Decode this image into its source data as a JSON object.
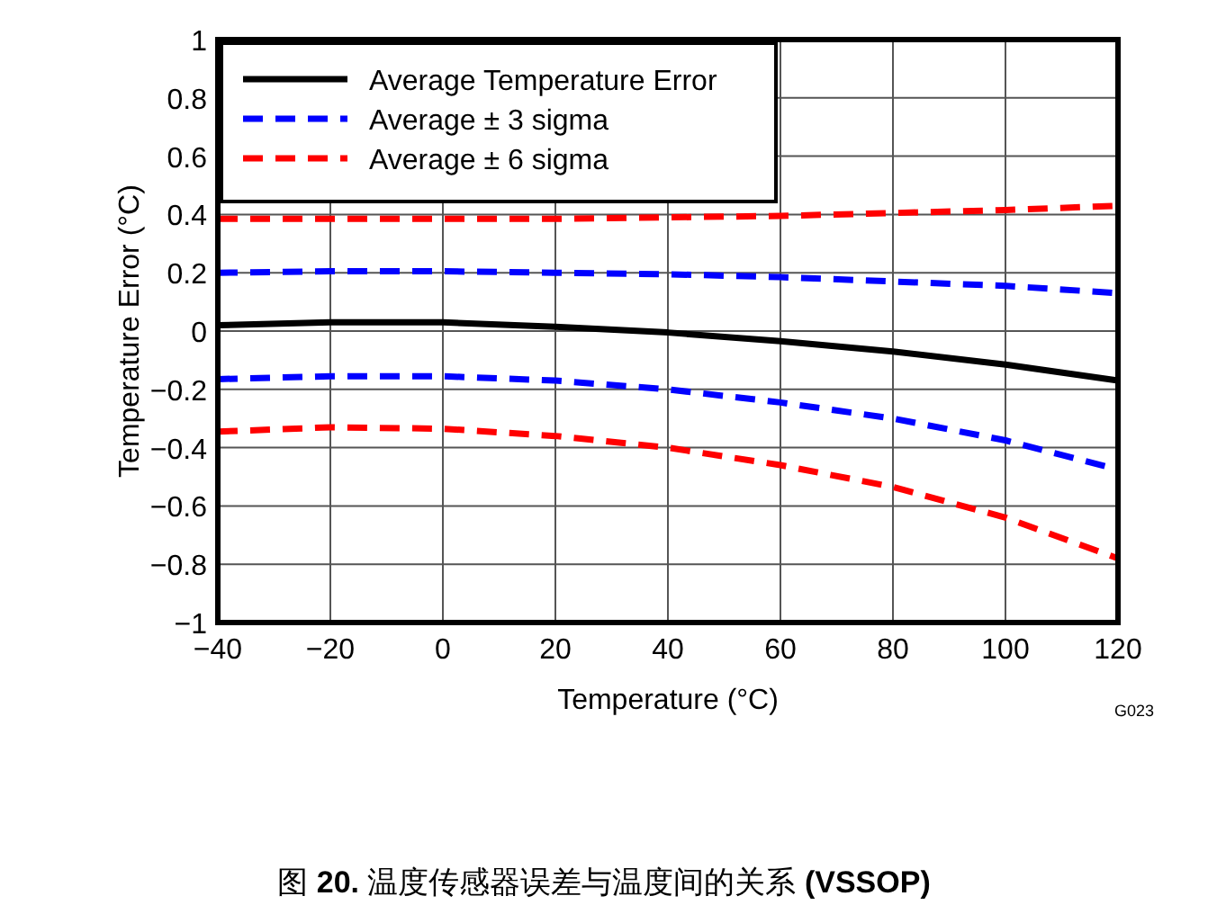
{
  "chart_data": {
    "type": "line",
    "xlabel": "Temperature (°C)",
    "ylabel": "Temperature Error (°C)",
    "x": [
      -40,
      -20,
      0,
      20,
      40,
      60,
      80,
      100,
      120
    ],
    "series": [
      {
        "name": "Average Temperature Error",
        "color": "#000000",
        "line_style": "solid",
        "values": [
          0.02,
          0.03,
          0.03,
          0.015,
          -0.005,
          -0.035,
          -0.07,
          -0.115,
          -0.17
        ]
      },
      {
        "name": "Average ± 3 sigma",
        "color": "#0000ff",
        "line_style": "dashed",
        "values": [
          0.2,
          0.205,
          0.205,
          0.2,
          0.195,
          0.185,
          0.17,
          0.155,
          0.13
        ]
      },
      {
        "name": "Average ± 6 sigma",
        "color": "#ff0000",
        "line_style": "dashed",
        "values": [
          0.385,
          0.385,
          0.385,
          0.385,
          0.39,
          0.395,
          0.405,
          0.415,
          0.43
        ]
      },
      {
        "color": "#0000ff",
        "line_style": "dashed",
        "values": [
          -0.165,
          -0.155,
          -0.155,
          -0.17,
          -0.2,
          -0.245,
          -0.3,
          -0.375,
          -0.475
        ]
      },
      {
        "color": "#ff0000",
        "line_style": "dashed",
        "values": [
          -0.345,
          -0.33,
          -0.335,
          -0.36,
          -0.4,
          -0.46,
          -0.535,
          -0.64,
          -0.78
        ]
      }
    ],
    "xlim": [
      -40,
      120
    ],
    "ylim": [
      -1,
      1
    ],
    "xticks": [
      {
        "value": -40,
        "label": "−40"
      },
      {
        "value": -20,
        "label": "−20"
      },
      0,
      20,
      40,
      60,
      80,
      100,
      120
    ],
    "yticks": [
      {
        "value": -1,
        "label": "−1"
      },
      {
        "value": -0.8,
        "label": "−0.8"
      },
      {
        "value": -0.6,
        "label": "−0.6"
      },
      {
        "value": -0.4,
        "label": "−0.4"
      },
      {
        "value": -0.2,
        "label": "−0.2"
      },
      0,
      0.2,
      0.4,
      0.6,
      0.8,
      1
    ],
    "grid": true,
    "legend": "top left",
    "annotations": [
      "G023",
      "图 **20.** 温度传感器误差与温度间的关系 **(VSSOP)**"
    ]
  }
}
